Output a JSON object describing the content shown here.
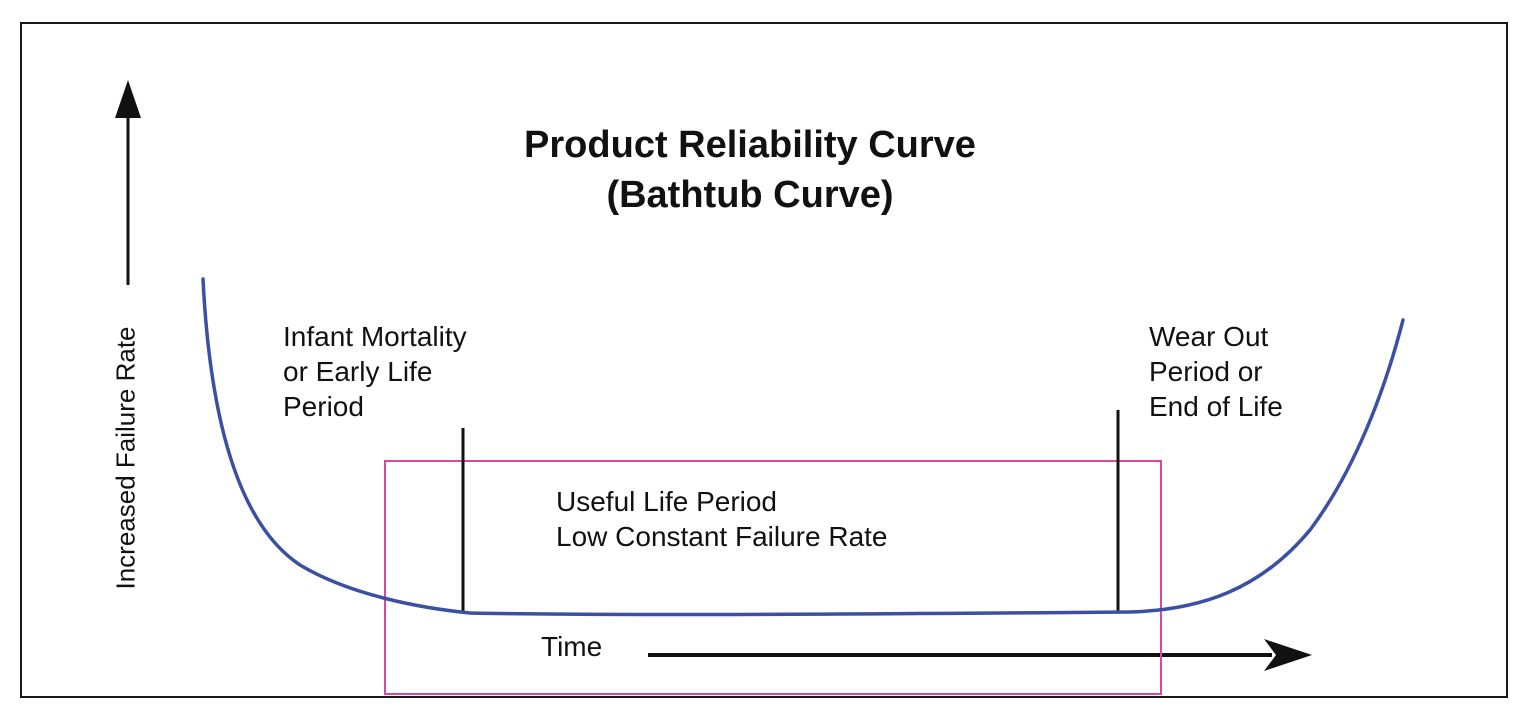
{
  "diagram": {
    "title_line1": "Product Reliability Curve",
    "title_line2": "(Bathtub Curve)",
    "y_axis_label": "Increased Failure Rate",
    "x_axis_label": "Time",
    "infant": {
      "line1": "Infant Mortality",
      "line2": "or Early Life",
      "line3": "Period"
    },
    "wear_out": {
      "line1": "Wear Out",
      "line2": "Period  or",
      "line3": "End of Life"
    },
    "useful_life": {
      "line1": "Useful Life Period",
      "line2": "Low Constant Failure Rate"
    }
  },
  "colors": {
    "curve": "#3b4fa3",
    "highlight_box": "#d9489a",
    "ink": "#111111"
  }
}
